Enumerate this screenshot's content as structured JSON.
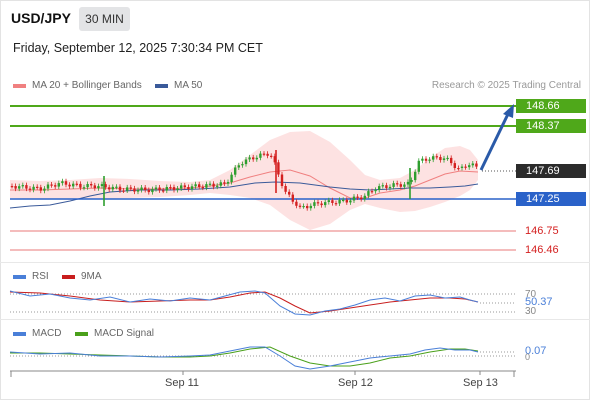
{
  "header": {
    "symbol": "USD/JPY",
    "timeframe": "30 MIN",
    "datetime": "Friday, September 12, 2025 7:30:34 PM CET"
  },
  "legend": {
    "ma20_bb": "MA 20 + Bollinger Bands",
    "ma50": "MA 50",
    "credit": "Research © 2025 Trading Central"
  },
  "price_labels": {
    "target2": "148.66",
    "target1": "148.37",
    "last_price": "147.69",
    "pivot": "147.25",
    "support1": "146.75",
    "support2": "146.46"
  },
  "rsi_panel": {
    "rsi_label": "RSI",
    "ma_label": "9MA",
    "level_70": "70",
    "level_30": "30",
    "value": "50.37"
  },
  "macd_panel": {
    "macd_label": "MACD",
    "signal_label": "MACD Signal",
    "zero_label": "0",
    "value": "0.07"
  },
  "x_axis": {
    "labels": [
      "Sep 11",
      "Sep 12",
      "Sep 13"
    ]
  },
  "colors": {
    "up_candle": "#2e9e2e",
    "down_candle": "#d42020",
    "bollinger_fill": "#fcd8d8",
    "ma20": "#f08080",
    "ma50": "#3a5a9a",
    "target_line": "#4fa81a",
    "pivot_line": "#2a62c9",
    "support_line": "#f0a5a5",
    "forecast_arrow": "#2a5aa8",
    "last_price_bg": "#2b2b2b",
    "rsi": "#4a7fd8",
    "rsi_ma": "#c81e1e",
    "macd": "#4a7fd8",
    "macd_signal": "#4aa01a"
  }
}
